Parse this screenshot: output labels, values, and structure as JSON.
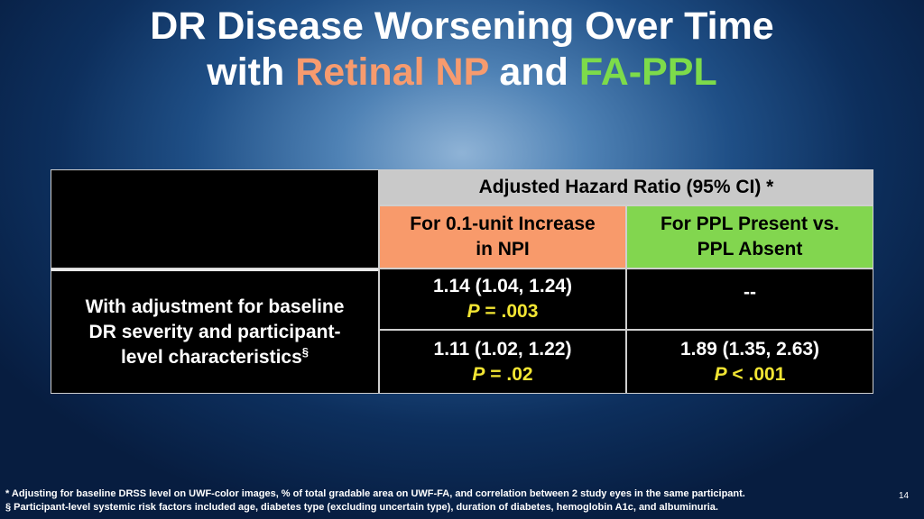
{
  "title": {
    "line1": "DR Disease Worsening Over Time",
    "line2_pre": "with ",
    "line2_np": "Retinal NP",
    "line2_mid": " and ",
    "line2_ppl": "FA-PPL"
  },
  "table": {
    "header_main": "Adjusted Hazard Ratio (95% CI) *",
    "col1_header_line1": "For 0.1-unit Increase",
    "col1_header_line2": "in NPI",
    "col2_header_line1": "For PPL Present vs.",
    "col2_header_line2": "PPL Absent",
    "row_label_line1": "With adjustment for baseline",
    "row_label_line2": "DR severity and participant-",
    "row_label_line3": "level characteristics",
    "row_label_sup": "§",
    "r1c1_value": "1.14 (1.04, 1.24)",
    "r1c1_p_letter": "P",
    "r1c1_p_rest": " = .003",
    "r1c2_value": "--",
    "r2c1_value": "1.11 (1.02, 1.22)",
    "r2c1_p_letter": "P",
    "r2c1_p_rest": " = .02",
    "r2c2_value": "1.89 (1.35, 2.63)",
    "r2c2_p_letter": "P",
    "r2c2_p_rest": " < .001"
  },
  "footnotes": {
    "note1": "* Adjusting for baseline DRSS level on UWF-color images, % of total gradable area on UWF-FA, and correlation between 2 study eyes in the same participant.",
    "note2": "§ Participant-level systemic risk factors included age, diabetes type (excluding uncertain type), duration of diabetes, hemoglobin A1c, and albuminuria."
  },
  "page_number": "14",
  "colors": {
    "np": "#f79b6e",
    "ppl": "#7ddb4a",
    "pvalue": "#f2e533",
    "header_gray": "#c9c9c9"
  }
}
